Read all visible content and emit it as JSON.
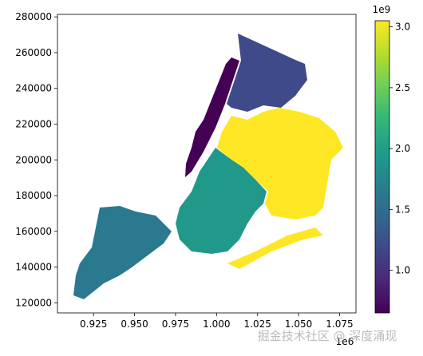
{
  "chart_data": {
    "type": "choropleth",
    "colormap": "viridis",
    "values": [
      0.65,
      1.19,
      3.05,
      1.94,
      1.62
    ],
    "xlim": [
      0.903,
      1.085
    ],
    "xticks": [
      0.925,
      {
        "value": 0.95,
        "label": "0.950"
      },
      0.975,
      {
        "value": 1,
        "label": "1.000"
      },
      1.025,
      {
        "value": 1.05,
        "label": "1.050"
      },
      1.075
    ],
    "x_offset_label": "1e6",
    "ylim": [
      114400,
      281400
    ],
    "yticks": [
      120000,
      140000,
      160000,
      180000,
      200000,
      220000,
      240000,
      260000,
      280000
    ],
    "clim": [
      0.65,
      3.05
    ],
    "cticks": [
      {
        "value": 1,
        "label": "1.0"
      },
      {
        "value": 1.5,
        "label": "1.5"
      },
      {
        "value": 2,
        "label": "2.0"
      },
      {
        "value": 2.5,
        "label": "2.5"
      },
      {
        "value": 3,
        "label": "3.0"
      }
    ],
    "c_offset_label": "1e9",
    "watermark": "掘金技术社区 @ 深度涌现"
  }
}
